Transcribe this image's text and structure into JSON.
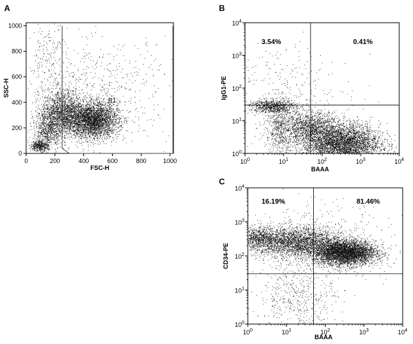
{
  "figure": {
    "title": ""
  },
  "chart_data": [
    {
      "id": "A",
      "panel_label": "A",
      "type": "scatter",
      "xlabel": "FSC-H",
      "ylabel": "SSC-H",
      "xscale": "linear",
      "yscale": "linear",
      "xlim": [
        0,
        1024
      ],
      "ylim": [
        0,
        1024
      ],
      "xticks": [
        0,
        200,
        400,
        600,
        800,
        1000
      ],
      "yticks": [
        0,
        200,
        400,
        600,
        800,
        1000
      ],
      "gate_label": "R1",
      "gate_polygon": [
        [
          250,
          1000
        ],
        [
          250,
          40
        ],
        [
          300,
          0
        ],
        [
          1020,
          0
        ],
        [
          1020,
          1000
        ]
      ],
      "clusters": [
        {
          "cx": 460,
          "cy": 260,
          "sx": 90,
          "sy": 70,
          "n": 3200
        },
        {
          "cx": 250,
          "cy": 320,
          "sx": 70,
          "sy": 90,
          "n": 1600
        },
        {
          "cx": 150,
          "cy": 180,
          "sx": 50,
          "sy": 80,
          "n": 700
        },
        {
          "cx": 90,
          "cy": 60,
          "sx": 30,
          "sy": 20,
          "n": 400
        },
        {
          "cx": 500,
          "cy": 500,
          "sx": 250,
          "sy": 200,
          "n": 600
        },
        {
          "cx": 150,
          "cy": 700,
          "sx": 70,
          "sy": 200,
          "n": 200
        }
      ]
    },
    {
      "id": "B",
      "panel_label": "B",
      "type": "scatter",
      "xlabel": "BAAA",
      "ylabel": "IgG1-PE",
      "xscale": "log",
      "yscale": "log",
      "xlim": [
        1,
        10000
      ],
      "ylim": [
        1,
        10000
      ],
      "xticks": [
        "10^0",
        "10^1",
        "10^2",
        "10^3",
        "10^4"
      ],
      "yticks": [
        "10^0",
        "10^1",
        "10^2",
        "10^3",
        "10^4"
      ],
      "quadrant_x": 50,
      "quadrant_y": 30,
      "quadrants": {
        "upper_left": "3.54%",
        "upper_right": "0.41%"
      },
      "clusters": [
        {
          "cx": 2.5,
          "cy": 0.3,
          "sx": 0.5,
          "sy": 0.3,
          "n": 4000
        },
        {
          "cx": 1.7,
          "cy": 0.8,
          "sx": 0.35,
          "sy": 0.25,
          "n": 1200
        },
        {
          "cx": 0.7,
          "cy": 1.45,
          "sx": 0.3,
          "sy": 0.1,
          "n": 700
        },
        {
          "cx": 0.9,
          "cy": 0.8,
          "sx": 0.18,
          "sy": 0.45,
          "n": 600
        },
        {
          "cx": 1.5,
          "cy": 0.9,
          "sx": 0.9,
          "sy": 0.9,
          "n": 300
        },
        {
          "cx": 1.0,
          "cy": 2.3,
          "sx": 0.6,
          "sy": 0.6,
          "n": 120
        }
      ]
    },
    {
      "id": "C",
      "panel_label": "C",
      "type": "scatter",
      "xlabel": "BAAA",
      "ylabel": "CD34-PE",
      "xscale": "log",
      "yscale": "log",
      "xlim": [
        1,
        10000
      ],
      "ylim": [
        1,
        10000
      ],
      "xticks": [
        "10^0",
        "10^1",
        "10^2",
        "10^3",
        "10^4"
      ],
      "yticks": [
        "10^0",
        "10^1",
        "10^2",
        "10^3",
        "10^4"
      ],
      "quadrant_x": 50,
      "quadrant_y": 30,
      "quadrants": {
        "upper_left": "16.19%",
        "upper_right": "81.46%"
      },
      "clusters": [
        {
          "cx": 2.5,
          "cy": 2.1,
          "sx": 0.4,
          "sy": 0.18,
          "n": 4200
        },
        {
          "cx": 1.2,
          "cy": 2.4,
          "sx": 0.6,
          "sy": 0.22,
          "n": 2600
        },
        {
          "cx": 0.3,
          "cy": 2.55,
          "sx": 0.25,
          "sy": 0.15,
          "n": 600
        },
        {
          "cx": 1.3,
          "cy": 0.8,
          "sx": 0.5,
          "sy": 0.5,
          "n": 450
        },
        {
          "cx": 1.8,
          "cy": 2.4,
          "sx": 0.9,
          "sy": 0.6,
          "n": 500
        }
      ]
    }
  ]
}
